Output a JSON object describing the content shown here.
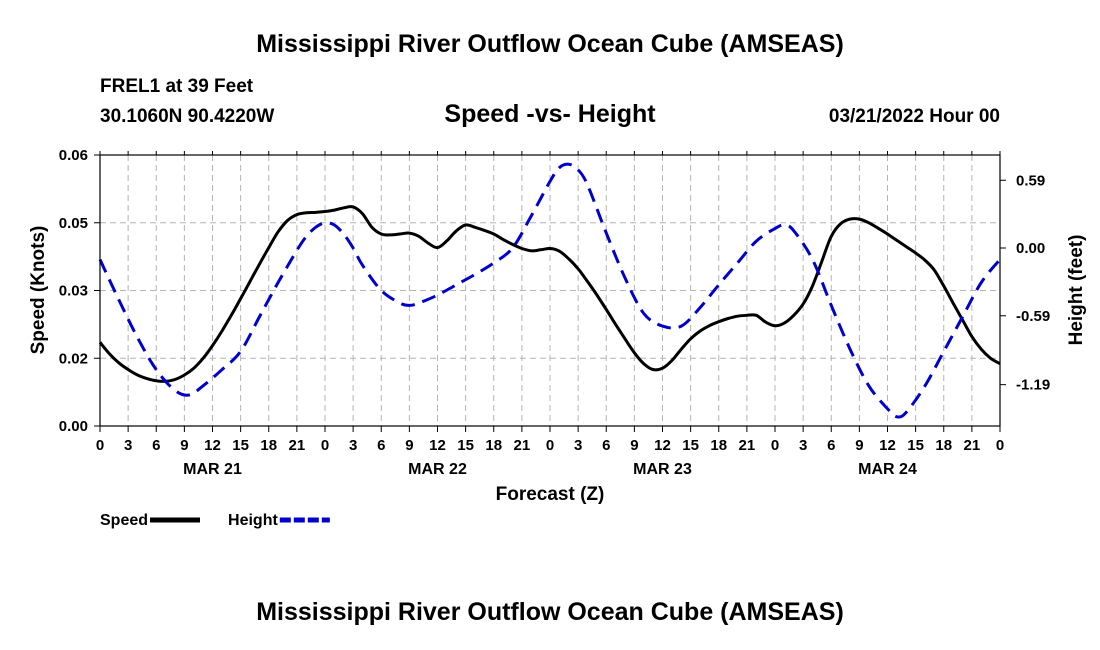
{
  "header": {
    "title": "Mississippi River Outflow Ocean Cube (AMSEAS)",
    "station": "FREL1 at 39 Feet",
    "coords": "30.1060N  90.4220W",
    "subtitle": "Speed -vs- Height",
    "date": "03/21/2022 Hour 00",
    "footer_title": "Mississippi River Outflow Ocean Cube (AMSEAS)"
  },
  "chart_data": {
    "type": "line",
    "title": "Speed -vs- Height",
    "xlabel": "Forecast (Z)",
    "ylabel": "Speed (Knots)",
    "y2label": "Height (feet)",
    "x_range": [
      0,
      96
    ],
    "ylim": [
      0.0,
      0.06
    ],
    "y2lim": [
      -1.55,
      0.81
    ],
    "x_ticks": [
      0,
      3,
      6,
      9,
      12,
      15,
      18,
      21,
      24,
      27,
      30,
      33,
      36,
      39,
      42,
      45,
      48,
      51,
      54,
      57,
      60,
      63,
      66,
      69,
      72,
      75,
      78,
      81,
      84,
      87,
      90,
      93,
      96
    ],
    "x_tick_labels": [
      "0",
      "3",
      "6",
      "9",
      "12",
      "15",
      "18",
      "21",
      "0",
      "3",
      "6",
      "9",
      "12",
      "15",
      "18",
      "21",
      "0",
      "3",
      "6",
      "9",
      "12",
      "15",
      "18",
      "21",
      "0",
      "3",
      "6",
      "9",
      "12",
      "15",
      "18",
      "21",
      "0"
    ],
    "date_labels": [
      {
        "x": 12,
        "label": "MAR 21"
      },
      {
        "x": 36,
        "label": "MAR 22"
      },
      {
        "x": 60,
        "label": "MAR 23"
      },
      {
        "x": 84,
        "label": "MAR 24"
      }
    ],
    "y_ticks": [
      0.0,
      0.015,
      0.03,
      0.045,
      0.06
    ],
    "y_tick_labels": [
      "0.00",
      "0.02",
      "0.03",
      "0.05",
      "0.06"
    ],
    "y2_ticks": [
      0.59,
      0.0,
      -0.59,
      -1.19
    ],
    "y2_tick_labels": [
      "0.59",
      "0.00",
      "-0.59",
      "-1.19"
    ],
    "grid": true,
    "series": [
      {
        "name": "Speed",
        "axis": "left",
        "color": "#000000",
        "dash": "solid",
        "points": [
          [
            0,
            0.0185
          ],
          [
            1,
            0.016
          ],
          [
            2,
            0.014
          ],
          [
            3,
            0.0125
          ],
          [
            4,
            0.0113
          ],
          [
            5,
            0.0105
          ],
          [
            6,
            0.01
          ],
          [
            7,
            0.0099
          ],
          [
            8,
            0.0103
          ],
          [
            9,
            0.0113
          ],
          [
            10,
            0.0128
          ],
          [
            11,
            0.015
          ],
          [
            12,
            0.0178
          ],
          [
            13,
            0.021
          ],
          [
            14,
            0.0245
          ],
          [
            15,
            0.0282
          ],
          [
            16,
            0.032
          ],
          [
            17,
            0.0358
          ],
          [
            18,
            0.0395
          ],
          [
            19,
            0.043
          ],
          [
            20,
            0.0455
          ],
          [
            21,
            0.0468
          ],
          [
            22,
            0.0472
          ],
          [
            23,
            0.0473
          ],
          [
            24,
            0.0475
          ],
          [
            25,
            0.0478
          ],
          [
            26,
            0.0483
          ],
          [
            27,
            0.0485
          ],
          [
            28,
            0.047
          ],
          [
            29,
            0.044
          ],
          [
            30,
            0.0425
          ],
          [
            31,
            0.0423
          ],
          [
            32,
            0.0425
          ],
          [
            33,
            0.0427
          ],
          [
            34,
            0.042
          ],
          [
            35,
            0.0405
          ],
          [
            36,
            0.0395
          ],
          [
            37,
            0.041
          ],
          [
            38,
            0.0432
          ],
          [
            39,
            0.0445
          ],
          [
            40,
            0.044
          ],
          [
            41,
            0.0433
          ],
          [
            42,
            0.0425
          ],
          [
            43,
            0.0413
          ],
          [
            44,
            0.0402
          ],
          [
            45,
            0.0393
          ],
          [
            46,
            0.0388
          ],
          [
            47,
            0.039
          ],
          [
            48,
            0.0393
          ],
          [
            49,
            0.0387
          ],
          [
            50,
            0.037
          ],
          [
            51,
            0.0348
          ],
          [
            52,
            0.032
          ],
          [
            53,
            0.029
          ],
          [
            54,
            0.0258
          ],
          [
            55,
            0.0225
          ],
          [
            56,
            0.0193
          ],
          [
            57,
            0.0162
          ],
          [
            58,
            0.0138
          ],
          [
            59,
            0.0125
          ],
          [
            60,
            0.0128
          ],
          [
            61,
            0.0145
          ],
          [
            62,
            0.017
          ],
          [
            63,
            0.0193
          ],
          [
            64,
            0.021
          ],
          [
            65,
            0.0222
          ],
          [
            66,
            0.0231
          ],
          [
            67,
            0.0238
          ],
          [
            68,
            0.0243
          ],
          [
            69,
            0.0245
          ],
          [
            70,
            0.0245
          ],
          [
            71,
            0.023
          ],
          [
            72,
            0.0222
          ],
          [
            73,
            0.0228
          ],
          [
            74,
            0.0245
          ],
          [
            75,
            0.027
          ],
          [
            76,
            0.031
          ],
          [
            77,
            0.0365
          ],
          [
            78,
            0.042
          ],
          [
            79,
            0.0448
          ],
          [
            80,
            0.0458
          ],
          [
            81,
            0.0458
          ],
          [
            82,
            0.045
          ],
          [
            83,
            0.0438
          ],
          [
            84,
            0.0425
          ],
          [
            85,
            0.0411
          ],
          [
            86,
            0.0397
          ],
          [
            87,
            0.0383
          ],
          [
            88,
            0.0367
          ],
          [
            89,
            0.0345
          ],
          [
            90,
            0.031
          ],
          [
            91,
            0.0272
          ],
          [
            92,
            0.0235
          ],
          [
            93,
            0.0198
          ],
          [
            94,
            0.017
          ],
          [
            95,
            0.015
          ],
          [
            96,
            0.0138
          ]
        ]
      },
      {
        "name": "Height",
        "axis": "right",
        "color": "#0000cc",
        "dash": "dashed",
        "points": [
          [
            0,
            -0.1
          ],
          [
            2,
            -0.45
          ],
          [
            4,
            -0.78
          ],
          [
            6,
            -1.06
          ],
          [
            8,
            -1.24
          ],
          [
            9.5,
            -1.28
          ],
          [
            11,
            -1.2
          ],
          [
            13,
            -1.06
          ],
          [
            15,
            -0.9
          ],
          [
            17,
            -0.6
          ],
          [
            19,
            -0.3
          ],
          [
            21,
            -0.02
          ],
          [
            22,
            0.1
          ],
          [
            23,
            0.18
          ],
          [
            24,
            0.22
          ],
          [
            25,
            0.2
          ],
          [
            26,
            0.12
          ],
          [
            27,
            0.0
          ],
          [
            28,
            -0.15
          ],
          [
            30,
            -0.37
          ],
          [
            32,
            -0.48
          ],
          [
            33,
            -0.5
          ],
          [
            34,
            -0.48
          ],
          [
            36,
            -0.41
          ],
          [
            38,
            -0.32
          ],
          [
            40,
            -0.23
          ],
          [
            42,
            -0.13
          ],
          [
            44,
            0.0
          ],
          [
            46,
            0.28
          ],
          [
            48,
            0.58
          ],
          [
            49,
            0.7
          ],
          [
            50,
            0.73
          ],
          [
            51,
            0.68
          ],
          [
            52,
            0.55
          ],
          [
            54,
            0.13
          ],
          [
            56,
            -0.26
          ],
          [
            58,
            -0.57
          ],
          [
            60,
            -0.68
          ],
          [
            62,
            -0.68
          ],
          [
            64,
            -0.52
          ],
          [
            66,
            -0.32
          ],
          [
            68,
            -0.13
          ],
          [
            70,
            0.06
          ],
          [
            72,
            0.17
          ],
          [
            73,
            0.2
          ],
          [
            74,
            0.15
          ],
          [
            76,
            -0.1
          ],
          [
            78,
            -0.5
          ],
          [
            80,
            -0.88
          ],
          [
            82,
            -1.2
          ],
          [
            84,
            -1.4
          ],
          [
            85,
            -1.47
          ],
          [
            86,
            -1.43
          ],
          [
            88,
            -1.2
          ],
          [
            90,
            -0.9
          ],
          [
            92,
            -0.6
          ],
          [
            94,
            -0.3
          ],
          [
            96,
            -0.1
          ]
        ]
      }
    ],
    "legend": [
      {
        "label": "Speed",
        "color": "#000000",
        "dash": "solid"
      },
      {
        "label": "Height",
        "color": "#0000cc",
        "dash": "dashed"
      }
    ]
  }
}
